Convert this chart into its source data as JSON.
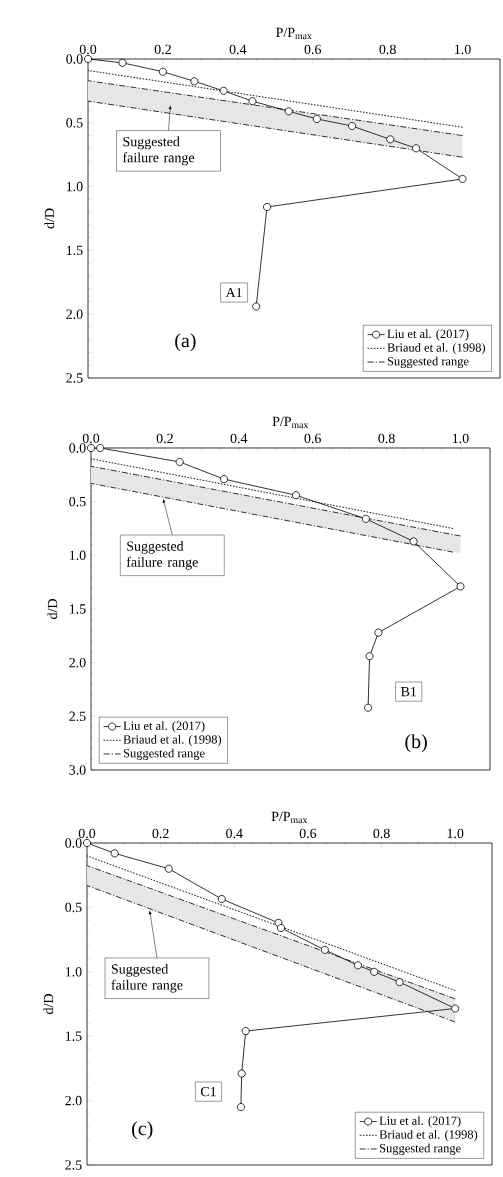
{
  "chart_data": [
    {
      "type": "line",
      "xlabel": "P/P$_{max}$",
      "ylabel": "d/D",
      "xlim": [
        0,
        1.1
      ],
      "xticks": [
        {
          "value": 0,
          "label": "0.0"
        },
        {
          "value": 0.2,
          "label": "0.2"
        },
        {
          "value": 0.4,
          "label": "0.4"
        },
        {
          "value": 0.6,
          "label": "0.6"
        },
        {
          "value": 0.8,
          "label": "0.8"
        },
        {
          "value": 1.0,
          "label": "1.0"
        }
      ],
      "ylim": [
        2.5,
        0
      ],
      "yticks": [
        {
          "value": 0,
          "label": "0.0"
        },
        {
          "value": 0.5,
          "label": "0.5"
        },
        {
          "value": 1.0,
          "label": "1.0"
        },
        {
          "value": 1.5,
          "label": "1.5"
        },
        {
          "value": 2.0,
          "label": "2.0"
        },
        {
          "value": 2.5,
          "label": "2.5"
        }
      ],
      "legend": "bottom right",
      "series": [
        {
          "name": "Liu et al. (2017)",
          "color": "#000000",
          "marker": "circle",
          "line_style": "solid",
          "x": [
            0,
            0.092,
            0.2,
            0.284,
            0.362,
            0.439,
            0.536,
            0.611,
            0.705,
            0.807,
            0.876,
            1.0,
            0.478,
            0.449
          ],
          "values": [
            0,
            0.03,
            0.1,
            0.175,
            0.25,
            0.33,
            0.41,
            0.47,
            0.525,
            0.63,
            0.7,
            0.94,
            1.16,
            1.94
          ]
        },
        {
          "name": "Briaud et al. (1998)",
          "color": "#000000",
          "marker": "none",
          "line_style": "dotted",
          "x": [
            0,
            1.0
          ],
          "values": [
            0.09,
            0.535
          ]
        },
        {
          "name": "Suggested range",
          "color": "#000000",
          "marker": "none",
          "line_style": "dashdot",
          "x": [
            0,
            1.0
          ],
          "values": [
            0.17,
            0.6
          ],
          "lower": [
            0.17,
            0.6
          ],
          "upper": [
            0.33,
            0.77
          ]
        },
        {
          "color": "#000000",
          "marker": "none",
          "line_style": "dashdot",
          "x": [
            0,
            1.0
          ],
          "values": [
            0.33,
            0.77
          ]
        }
      ],
      "annotations": [
        "Suggested failure range",
        "A1",
        "(a)"
      ]
    },
    {
      "type": "line",
      "xlabel": "P/P$_{max}$",
      "ylabel": "d/D",
      "xlim": [
        0,
        1.08
      ],
      "xticks": [
        {
          "value": 0,
          "label": "0.0"
        },
        {
          "value": 0.2,
          "label": "0.2"
        },
        {
          "value": 0.4,
          "label": "0.4"
        },
        {
          "value": 0.6,
          "label": "0.6"
        },
        {
          "value": 0.8,
          "label": "0.8"
        },
        {
          "value": 1.0,
          "label": "1.0"
        }
      ],
      "ylim": [
        3.0,
        0
      ],
      "yticks": [
        {
          "value": 0,
          "label": "0.0"
        },
        {
          "value": 0.5,
          "label": "0.5"
        },
        {
          "value": 1.0,
          "label": "1.0"
        },
        {
          "value": 1.5,
          "label": "1.5"
        },
        {
          "value": 2.0,
          "label": "2.0"
        },
        {
          "value": 2.5,
          "label": "2.5"
        },
        {
          "value": 3.0,
          "label": "3.0"
        }
      ],
      "legend": "bottom left",
      "series": [
        {
          "name": "Liu et al. (2017)",
          "color": "#000000",
          "marker": "circle",
          "line_style": "solid",
          "x": [
            0,
            0.025,
            0.24,
            0.36,
            0.555,
            0.744,
            0.873,
            1.0,
            0.778,
            0.754,
            0.75
          ],
          "values": [
            0,
            0,
            0.13,
            0.29,
            0.44,
            0.66,
            0.87,
            1.29,
            1.72,
            1.94,
            2.42
          ]
        },
        {
          "name": "Briaud et al. (1998)",
          "color": "#000000",
          "marker": "none",
          "line_style": "dotted",
          "x": [
            0,
            0.98
          ],
          "values": [
            0.1,
            0.75
          ]
        },
        {
          "name": "Suggested range",
          "color": "#000000",
          "marker": "none",
          "line_style": "dashdot",
          "x": [
            0,
            1.0
          ],
          "values": [
            0.17,
            0.82
          ],
          "lower": [
            0.17,
            0.82
          ],
          "upper": [
            0.33,
            0.98
          ]
        },
        {
          "color": "#000000",
          "marker": "none",
          "line_style": "dashdot",
          "x": [
            0,
            0.98
          ],
          "values": [
            0.33,
            0.97
          ]
        }
      ],
      "annotations": [
        {
          "text": "Suggested failure range",
          "x": 0.195,
          "y": 0.47
        },
        "B1",
        "(b)"
      ]
    },
    {
      "type": "line",
      "xlabel": "P/P$_{max}$",
      "ylabel": "d/D",
      "xlim": [
        0,
        1.1
      ],
      "xticks": [
        {
          "value": 0,
          "label": "0.0"
        },
        {
          "value": 0.2,
          "label": "0.2"
        },
        {
          "value": 0.4,
          "label": "0.4"
        },
        {
          "value": 0.6,
          "label": "0.6"
        },
        {
          "value": 0.8,
          "label": "0.8"
        },
        {
          "value": 1.0,
          "label": "1.0"
        }
      ],
      "ylim": [
        2.5,
        0
      ],
      "yticks": [
        {
          "value": 0,
          "label": "0.0"
        },
        {
          "value": 0.5,
          "label": "0.5"
        },
        {
          "value": 1.0,
          "label": "1.0"
        },
        {
          "value": 1.5,
          "label": "1.5"
        },
        {
          "value": 2.0,
          "label": "2.0"
        },
        {
          "value": 2.5,
          "label": "2.5"
        }
      ],
      "legend": "bottom right",
      "series": [
        {
          "name": "Liu et al. (2017)",
          "color": "#000000",
          "marker": "circle",
          "line_style": "solid",
          "x": [
            0,
            0.075,
            0.222,
            0.366,
            0.52,
            0.527,
            0.646,
            0.736,
            0.78,
            0.849,
            1.0,
            0.431,
            0.42,
            0.418
          ],
          "values": [
            0,
            0.08,
            0.2,
            0.435,
            0.62,
            0.66,
            0.83,
            0.95,
            1.0,
            1.08,
            1.285,
            1.46,
            1.79,
            2.05
          ]
        },
        {
          "name": "Briaud et al. (1998)",
          "color": "#000000",
          "marker": "none",
          "line_style": "dotted",
          "x": [
            0,
            1.0
          ],
          "values": [
            0.1,
            1.145
          ]
        },
        {
          "name": "Suggested range",
          "color": "#000000",
          "marker": "none",
          "line_style": "dashdot",
          "x": [
            0,
            1.0
          ],
          "values": [
            0.175,
            1.21
          ],
          "lower": [
            0.175,
            1.21
          ],
          "upper": [
            0.33,
            1.39
          ]
        },
        {
          "color": "#000000",
          "marker": "none",
          "line_style": "dashdot",
          "x": [
            0,
            1.0
          ],
          "values": [
            0.33,
            1.39
          ]
        }
      ],
      "annotations": [
        {
          "text": "Suggested failure range",
          "x": 0.17,
          "y": 0.52
        },
        "C1",
        "(c)"
      ]
    }
  ]
}
